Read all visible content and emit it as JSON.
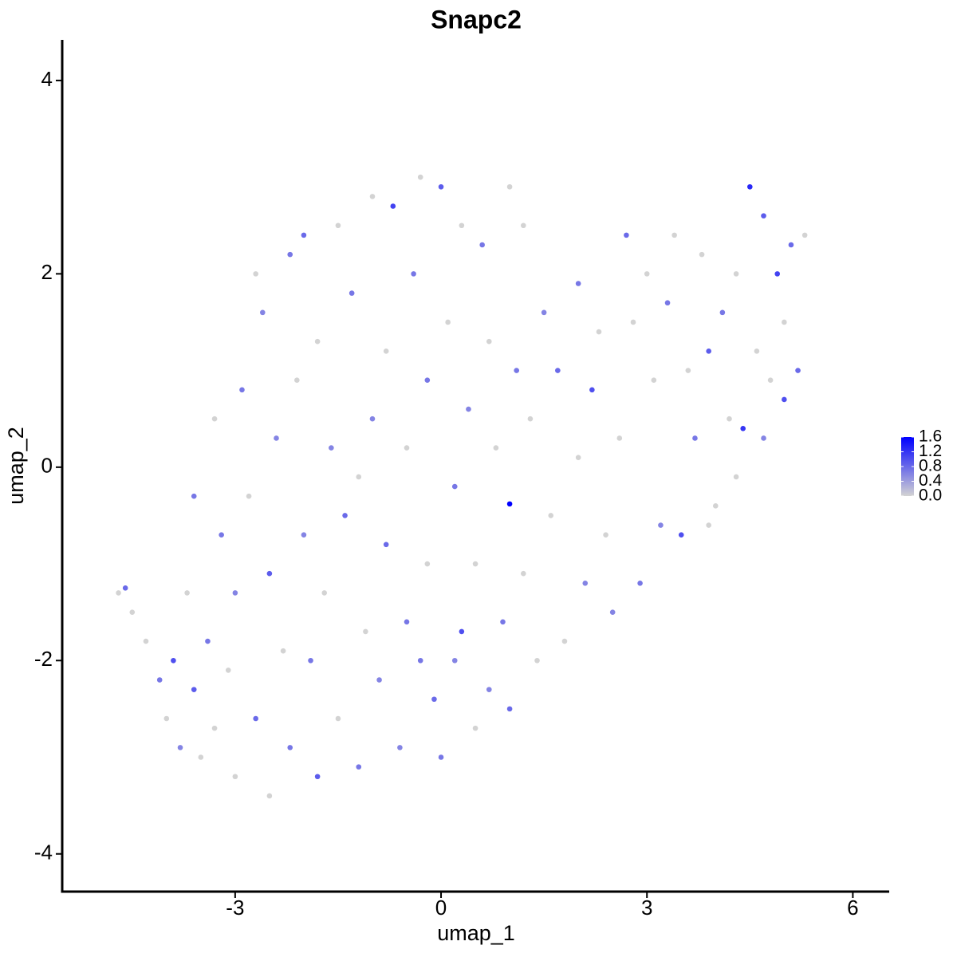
{
  "chart_data": {
    "type": "scatter",
    "title": "Snapc2",
    "x_label": "umap_1",
    "y_label": "umap_2",
    "x": [
      -4.7,
      -4.6,
      -4.5,
      -4.3,
      -4.1,
      -4.0,
      -3.9,
      -3.8,
      -3.7,
      -3.6,
      -3.5,
      -3.4,
      -3.3,
      -3.2,
      -3.1,
      -3.0,
      -3.0,
      -2.9,
      -2.8,
      -2.7,
      -2.6,
      -2.5,
      -2.5,
      -2.4,
      -2.3,
      -2.2,
      -2.2,
      -2.1,
      -2.0,
      -2.0,
      -1.9,
      -1.8,
      -1.8,
      -1.7,
      -1.6,
      -1.5,
      -1.5,
      -1.4,
      -1.3,
      -1.2,
      -1.1,
      -1.0,
      -1.0,
      -0.9,
      -0.8,
      -0.8,
      -0.7,
      -0.6,
      -0.5,
      -0.5,
      -0.4,
      -0.3,
      -0.2,
      -0.2,
      -0.1,
      0.0,
      0.0,
      0.1,
      0.2,
      0.3,
      0.3,
      0.4,
      0.5,
      0.5,
      0.6,
      0.7,
      0.7,
      0.8,
      0.9,
      1.0,
      1.0,
      1.0,
      1.1,
      1.2,
      1.3,
      1.4,
      1.5,
      1.6,
      1.7,
      1.8,
      2.0,
      2.0,
      2.1,
      2.2,
      2.3,
      2.4,
      2.5,
      2.6,
      2.7,
      2.8,
      2.9,
      3.0,
      3.1,
      3.2,
      3.3,
      3.4,
      3.5,
      3.6,
      3.7,
      3.8,
      3.9,
      4.0,
      4.1,
      4.2,
      4.3,
      4.4,
      4.5,
      4.6,
      4.7,
      4.8,
      4.9,
      5.0,
      5.0,
      5.1,
      5.2,
      5.3,
      4.3,
      3.9,
      4.7,
      -3.6,
      -2.7,
      -1.2,
      -3.3,
      -0.3,
      1.2,
      0.2
    ],
    "y": [
      -1.3,
      -1.25,
      -1.5,
      -1.8,
      -2.2,
      -2.6,
      -2.0,
      -2.9,
      -1.3,
      -2.3,
      -3.0,
      -1.8,
      -2.7,
      -0.7,
      -2.1,
      -3.2,
      -1.3,
      0.8,
      -0.3,
      -2.6,
      1.6,
      -1.1,
      -3.4,
      0.3,
      -1.9,
      -2.9,
      2.2,
      0.9,
      -0.7,
      2.4,
      -2.0,
      -3.2,
      1.3,
      -1.3,
      0.2,
      2.5,
      -2.6,
      -0.5,
      1.8,
      -3.1,
      -1.7,
      0.5,
      2.8,
      -2.2,
      -0.8,
      1.2,
      2.7,
      -2.9,
      0.2,
      -1.6,
      2.0,
      3.0,
      -1.0,
      0.9,
      -2.4,
      2.9,
      -3.0,
      1.5,
      -0.2,
      -1.7,
      2.5,
      0.6,
      -2.7,
      -1.0,
      2.3,
      1.3,
      -2.3,
      0.2,
      -1.6,
      -0.38,
      2.9,
      -2.5,
      1.0,
      -1.1,
      0.5,
      -2.0,
      1.6,
      -0.5,
      1.0,
      -1.8,
      0.1,
      1.9,
      -1.2,
      0.8,
      1.4,
      -0.7,
      -1.5,
      0.3,
      2.4,
      1.5,
      -1.2,
      2.0,
      0.9,
      -0.6,
      1.7,
      2.4,
      -0.7,
      1.0,
      0.3,
      2.2,
      1.2,
      -0.4,
      1.6,
      0.5,
      2.0,
      0.4,
      2.9,
      1.2,
      2.6,
      0.9,
      2.0,
      0.7,
      1.5,
      2.3,
      1.0,
      2.4,
      -0.1,
      -0.6,
      0.3,
      -0.3,
      2.0,
      -0.1,
      0.5,
      -2.0,
      2.5,
      -2.0
    ],
    "values": [
      0,
      0.8,
      0,
      0,
      0.7,
      0,
      1.0,
      0.6,
      0,
      0.9,
      0,
      0.7,
      0,
      0.7,
      0,
      0,
      0.6,
      0.7,
      0,
      0.8,
      0.6,
      0.9,
      0,
      0.6,
      0,
      0.7,
      0.7,
      0,
      0.6,
      0.8,
      0.7,
      0.9,
      0,
      0,
      0.6,
      0,
      0,
      0.8,
      0.7,
      0.7,
      0,
      0.6,
      0,
      0.6,
      0.8,
      0,
      1.1,
      0.6,
      0,
      0.7,
      0.7,
      0,
      0,
      0.7,
      0.8,
      0.9,
      0.7,
      0,
      0.7,
      1.0,
      0,
      0.6,
      0,
      0,
      0.7,
      0,
      0.6,
      0,
      0.7,
      1.6,
      0,
      0.8,
      0.7,
      0,
      0,
      0,
      0.6,
      0,
      0.8,
      0,
      0,
      0.7,
      0.6,
      1.0,
      0,
      0,
      0.6,
      0,
      0.8,
      0,
      0.7,
      0,
      0,
      0.6,
      0.7,
      0,
      1.0,
      0,
      0.7,
      0,
      0.9,
      0,
      0.7,
      0,
      0,
      1.2,
      1.3,
      0,
      0.9,
      0,
      1.1,
      1.0,
      0,
      0.8,
      0.8,
      0,
      0,
      0,
      0.6,
      0.7,
      0,
      0,
      0,
      0.7,
      0,
      0.6
    ],
    "xlim": [
      -5.52,
      6.53
    ],
    "xticks": [
      -3,
      0,
      3,
      6
    ],
    "ylim": [
      -4.39,
      4.42
    ],
    "yticks": [
      -4,
      -2,
      0,
      2,
      4
    ],
    "color_scale": [
      "#d3d3d3",
      "#0000ff"
    ],
    "clim": [
      0,
      1.6
    ],
    "colorbar_ticks": [
      {
        "value": 0,
        "label": "0.0"
      },
      0.4,
      0.8,
      1.2,
      1.6
    ]
  }
}
